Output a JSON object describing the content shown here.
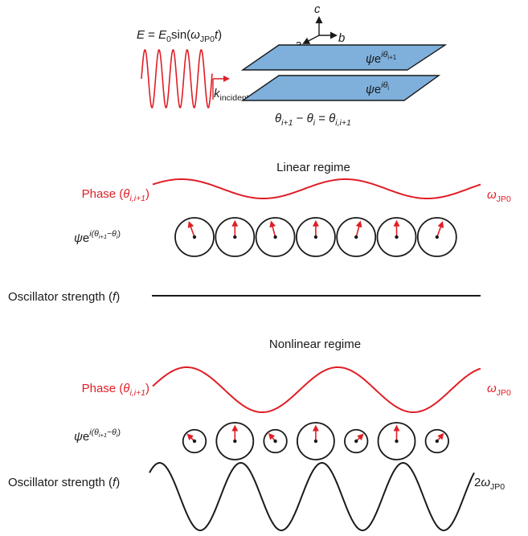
{
  "top": {
    "field_eq": {
      "lhs": "E",
      "eq": " = ",
      "e0": "E",
      "e0_sub": "0",
      "sin": "sin(",
      "omega": "ω",
      "omega_sub": "JP0",
      "t": "t",
      "close": ")"
    },
    "k_incident": {
      "k": "k",
      "sub": "incident"
    },
    "axes": {
      "a": "a",
      "b": "b",
      "c": "c"
    },
    "plane_upper": {
      "psi": "ψ",
      "e": "e",
      "exp_i": "iθ",
      "exp_sub": "i+1"
    },
    "plane_lower": {
      "psi": "ψ",
      "e": "e",
      "exp_i": "iθ",
      "exp_sub": "i"
    },
    "phase_relation": {
      "t1": "θ",
      "t1_sub": "i+1",
      "minus": " − ",
      "t2": "θ",
      "t2_sub": "i",
      "eq": " = ",
      "t3": "θ",
      "t3_sub": "i,i+1"
    }
  },
  "linear": {
    "title": "Linear regime",
    "phase_label": {
      "text": "Phase (",
      "theta": "θ",
      "sub": "i,i+1",
      "close": ")"
    },
    "omega_label": {
      "omega": "ω",
      "sub": "JP0"
    },
    "psi_label": {
      "psi": "ψ",
      "e": "e",
      "exp": "i(θ",
      "exp_sub1": "i+1",
      "exp_mid": "−θ",
      "exp_sub2": "i",
      "exp_close": ")"
    },
    "oscillator_label": {
      "text": "Oscillator strength (",
      "f": "f",
      "close": ")"
    },
    "phasor_angles_deg": [
      -20,
      0,
      -15,
      0,
      15,
      0,
      20
    ],
    "phasor_radius_ratio": [
      1,
      1,
      1,
      1,
      1,
      1,
      1
    ]
  },
  "nonlinear": {
    "title": "Nonlinear regime",
    "phase_label": {
      "text": "Phase (",
      "theta": "θ",
      "sub": "i,i+1",
      "close": ")"
    },
    "omega_label": {
      "omega": "ω",
      "sub": "JP0"
    },
    "psi_label": {
      "psi": "ψ",
      "e": "e",
      "exp": "i(θ",
      "exp_sub1": "i+1",
      "exp_mid": "−θ",
      "exp_sub2": "i",
      "exp_close": ")"
    },
    "oscillator_label": {
      "text": "Oscillator strength (",
      "f": "f",
      "close": ")"
    },
    "osc_freq_label": {
      "coef": "2",
      "omega": "ω",
      "sub": "JP0"
    },
    "phasor_angles_deg": [
      -45,
      0,
      -40,
      0,
      45,
      0,
      40
    ],
    "phasor_radius_ratio": [
      0.62,
      1,
      0.62,
      1,
      0.62,
      1,
      0.62
    ]
  },
  "colors": {
    "red": "#e01e26",
    "blue": "#7fb0dc",
    "black": "#1a1a1a"
  }
}
